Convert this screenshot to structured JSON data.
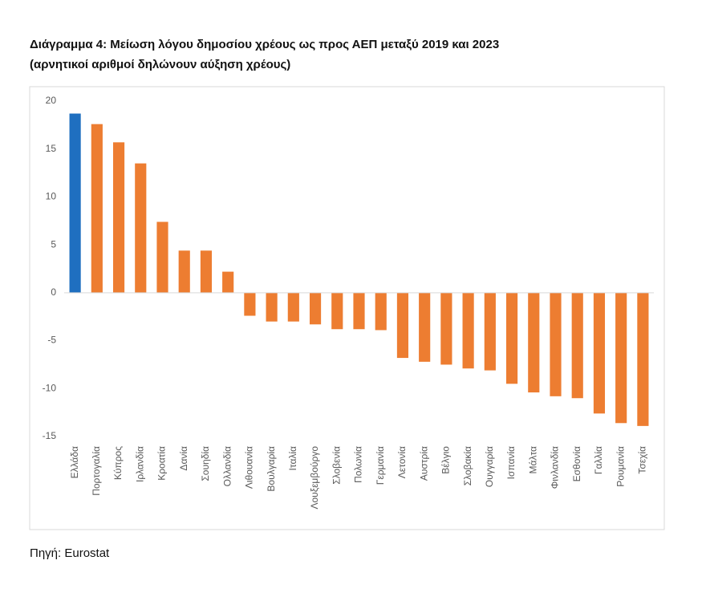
{
  "chart_data": {
    "type": "bar",
    "title": "Διάγραμμα 4: Μείωση λόγου δημοσίου χρέους ως προς ΑΕΠ μεταξύ 2019 και 2023",
    "subtitle": "(αρνητικοί αριθμοί δηλώνουν αύξηση χρέους)",
    "source": "Πηγή: Eurostat",
    "categories": [
      "Ελλάδα",
      "Πορτογαλία",
      "Κύπρος",
      "Ιρλανδία",
      "Κροατία",
      "Δανία",
      "Σουηδία",
      "Ολλανδία",
      "Λιθουανία",
      "Βουλγαρία",
      "Ιταλία",
      "Λουξεμβούργο",
      "Σλοβενία",
      "Πολωνία",
      "Γερμανία",
      "Λετονία",
      "Αυστρία",
      "Βέλγιο",
      "Σλοβακία",
      "Ουγγαρία",
      "Ισπανία",
      "Μάλτα",
      "Φινλανδία",
      "Εσθονία",
      "Γαλλία",
      "Ρουμανία",
      "Τσεχία"
    ],
    "values": [
      18.7,
      17.6,
      15.7,
      13.5,
      7.4,
      4.4,
      4.4,
      2.2,
      -2.4,
      -3.0,
      -3.0,
      -3.3,
      -3.8,
      -3.8,
      -3.9,
      -6.8,
      -7.2,
      -7.5,
      -7.9,
      -8.1,
      -9.5,
      -10.4,
      -10.8,
      -11.0,
      -12.6,
      -13.6,
      -13.9
    ],
    "colors": [
      "#1f6fc0",
      "#ed7d31",
      "#ed7d31",
      "#ed7d31",
      "#ed7d31",
      "#ed7d31",
      "#ed7d31",
      "#ed7d31",
      "#ed7d31",
      "#ed7d31",
      "#ed7d31",
      "#ed7d31",
      "#ed7d31",
      "#ed7d31",
      "#ed7d31",
      "#ed7d31",
      "#ed7d31",
      "#ed7d31",
      "#ed7d31",
      "#ed7d31",
      "#ed7d31",
      "#ed7d31",
      "#ed7d31",
      "#ed7d31",
      "#ed7d31",
      "#ed7d31",
      "#ed7d31"
    ],
    "ylim": [
      -15,
      20
    ],
    "yticks": [
      -15,
      -10,
      -5,
      0,
      5,
      10,
      15,
      20
    ],
    "grid": false
  }
}
